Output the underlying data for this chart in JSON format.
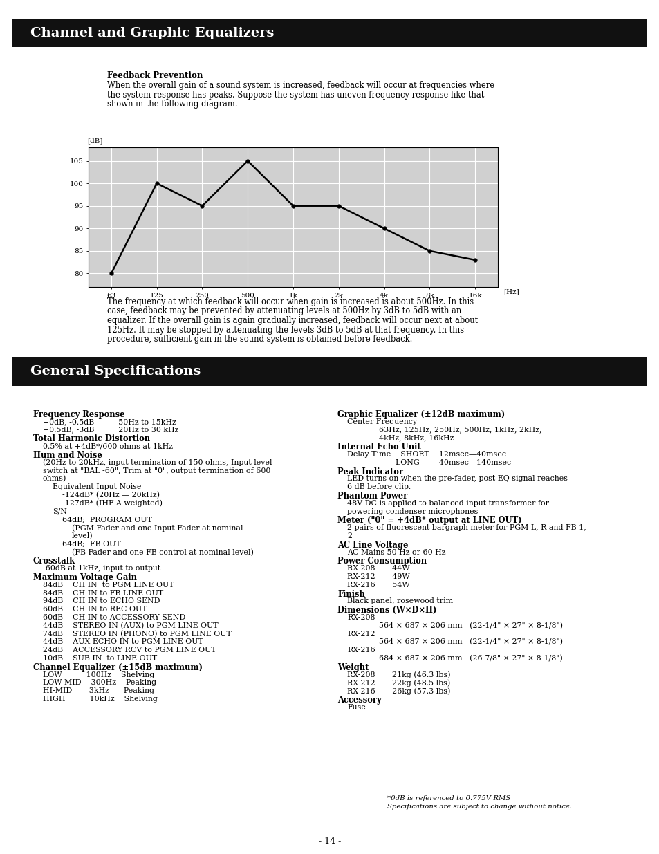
{
  "page_bg": "#ffffff",
  "header1_text": "Channel and Graphic Equalizers",
  "header1_bg": "#111111",
  "header1_color": "#ffffff",
  "header2_text": "General Specifications",
  "header2_bg": "#111111",
  "header2_color": "#ffffff",
  "feedback_title": "Feedback Prevention",
  "feedback_body_lines": [
    "When the overall gain of a sound system is increased, feedback will occur at frequencies where",
    "the system response has peaks. Suppose the system has uneven frequency response like that",
    "shown in the following diagram."
  ],
  "chart_xlabel": "[Hz]",
  "chart_ylabel": "[dB]",
  "chart_xtick_labels": [
    "63",
    "125",
    "250",
    "500",
    "1k",
    "2k",
    "4k",
    "8k",
    "16k"
  ],
  "chart_ytick_labels": [
    80,
    85,
    90,
    95,
    100,
    105
  ],
  "chart_ylim": [
    77,
    108
  ],
  "chart_data_x": [
    0,
    1,
    2,
    3,
    4,
    5,
    6,
    7,
    8
  ],
  "chart_data_y": [
    80,
    100,
    95,
    105,
    95,
    95,
    90,
    85,
    83
  ],
  "chart_bg": "#d0d0d0",
  "chart_grid_color": "#ffffff",
  "chart_line_color": "#000000",
  "feedback_body2_lines": [
    "The frequency at which feedback will occur when gain is increased is about 500Hz. In this",
    "case, feedback may be prevented by attenuating levels at 500Hz by 3dB to 5dB with an",
    "equalizer. If the overall gain is again gradually increased, feedback will occur next at about",
    "125Hz. It may be stopped by attenuating the levels 3dB to 5dB at that frequency. In this",
    "procedure, sufficient gain in the sound system is obtained before feedback."
  ],
  "left_col": [
    {
      "type": "bold",
      "text": "Frequency Response"
    },
    {
      "type": "i1",
      "text": "+0dB, -0.5dB          50Hz to 15kHz"
    },
    {
      "type": "i1",
      "text": "+0.5dB, -3dB          20Hz to 30 kHz"
    },
    {
      "type": "bold",
      "text": "Total Harmonic Distortion"
    },
    {
      "type": "i1",
      "text": "0.5% at +4dB*/600 ohms at 1kHz"
    },
    {
      "type": "bold",
      "text": "Hum and Noise"
    },
    {
      "type": "i1",
      "text": "(20Hz to 20kHz, input termination of 150 ohms, Input level"
    },
    {
      "type": "i1",
      "text": "switch at \"BAL -60\", Trim at \"0\", output termination of 600"
    },
    {
      "type": "i1",
      "text": "ohms)"
    },
    {
      "type": "i2",
      "text": "Equivalent Input Noise"
    },
    {
      "type": "i3",
      "text": "-124dB* (20Hz — 20kHz)"
    },
    {
      "type": "i3",
      "text": "-127dB* (IHF-A weighted)"
    },
    {
      "type": "i2",
      "text": "S/N"
    },
    {
      "type": "i3",
      "text": "64dB;  PROGRAM OUT"
    },
    {
      "type": "i4",
      "text": "(PGM Fader and one Input Fader at nominal"
    },
    {
      "type": "i4",
      "text": "level)"
    },
    {
      "type": "i3",
      "text": "64dB;  FB OUT"
    },
    {
      "type": "i4",
      "text": "(FB Fader and one FB control at nominal level)"
    },
    {
      "type": "bold",
      "text": "Crosstalk"
    },
    {
      "type": "i1",
      "text": "-60dB at 1kHz, input to output"
    },
    {
      "type": "bold",
      "text": "Maximum Voltage Gain"
    },
    {
      "type": "i1db",
      "text": "84dB    CH IN  to PGM LINE OUT"
    },
    {
      "type": "i1db",
      "text": "84dB    CH IN to FB LINE OUT"
    },
    {
      "type": "i1db",
      "text": "94dB    CH IN to ECHO SEND"
    },
    {
      "type": "i1db",
      "text": "60dB    CH IN to REC OUT"
    },
    {
      "type": "i1db",
      "text": "60dB    CH IN to ACCESSORY SEND"
    },
    {
      "type": "i1db",
      "text": "44dB    STEREO IN (AUX) to PGM LINE OUT"
    },
    {
      "type": "i1db",
      "text": "74dB    STEREO IN (PHONO) to PGM LINE OUT"
    },
    {
      "type": "i1db",
      "text": "44dB    AUX ECHO IN to PGM LINE OUT"
    },
    {
      "type": "i1db",
      "text": "24dB    ACCESSORY RCV to PGM LINE OUT"
    },
    {
      "type": "i1db",
      "text": "10dB    SUB IN  to LINE OUT"
    },
    {
      "type": "bold",
      "text": "Channel Equalizer (±15dB maximum)"
    },
    {
      "type": "i1",
      "text": "LOW          100Hz    Shelving"
    },
    {
      "type": "i1",
      "text": "LOW MID    300Hz    Peaking"
    },
    {
      "type": "i1",
      "text": "HI-MID       3kHz      Peaking"
    },
    {
      "type": "i1",
      "text": "HIGH          10kHz    Shelving"
    }
  ],
  "right_col": [
    {
      "type": "bold",
      "text": "Graphic Equalizer (±12dB maximum)"
    },
    {
      "type": "i1",
      "text": "Center Frequency"
    },
    {
      "type": "i2b",
      "text": "63Hz, 125Hz, 250Hz, 500Hz, 1kHz, 2kHz,"
    },
    {
      "type": "i2b",
      "text": "4kHz, 8kHz, 16kHz"
    },
    {
      "type": "bold",
      "text": "Internal Echo Unit"
    },
    {
      "type": "i1",
      "text": "Delay Time    SHORT    12msec—40msec"
    },
    {
      "type": "i1b",
      "text": "                    LONG        40msec—140msec"
    },
    {
      "type": "bold",
      "text": "Peak Indicator"
    },
    {
      "type": "i1",
      "text": "LED turns on when the pre-fader, post EQ signal reaches"
    },
    {
      "type": "i1",
      "text": "6 dB before clip."
    },
    {
      "type": "bold",
      "text": "Phantom Power"
    },
    {
      "type": "i1",
      "text": "48V DC is applied to balanced input transformer for"
    },
    {
      "type": "i1",
      "text": "powering condenser microphones"
    },
    {
      "type": "bold",
      "text": "Meter (\"0\" = +4dB* output at LINE OUT)"
    },
    {
      "type": "i1",
      "text": "2 pairs of fluorescent bargraph meter for PGM L, R and FB 1,"
    },
    {
      "type": "i1",
      "text": "2"
    },
    {
      "type": "bold",
      "text": "AC Line Voltage"
    },
    {
      "type": "i1",
      "text": "AC Mains 50 Hz or 60 Hz"
    },
    {
      "type": "bold",
      "text": "Power Consumption"
    },
    {
      "type": "i1",
      "text": "RX-208       44W"
    },
    {
      "type": "i1",
      "text": "RX-212       49W"
    },
    {
      "type": "i1",
      "text": "RX-216       54W"
    },
    {
      "type": "bold",
      "text": "Finish"
    },
    {
      "type": "i1",
      "text": "Black panel, rosewood trim"
    },
    {
      "type": "bold",
      "text": "Dimensions (W×D×H)"
    },
    {
      "type": "i1",
      "text": "RX-208"
    },
    {
      "type": "i2b",
      "text": "564 × 687 × 206 mm   (22-1/4\" × 27\" × 8-1/8\")"
    },
    {
      "type": "i1",
      "text": "RX-212"
    },
    {
      "type": "i2b",
      "text": "564 × 687 × 206 mm   (22-1/4\" × 27\" × 8-1/8\")"
    },
    {
      "type": "i1",
      "text": "RX-216"
    },
    {
      "type": "i2b",
      "text": "684 × 687 × 206 mm   (26-7/8\" × 27\" × 8-1/8\")"
    },
    {
      "type": "bold",
      "text": "Weight"
    },
    {
      "type": "i1",
      "text": "RX-208       21kg (46.3 lbs)"
    },
    {
      "type": "i1",
      "text": "RX-212       22kg (48.5 lbs)"
    },
    {
      "type": "i1",
      "text": "RX-216       26kg (57.3 lbs)"
    },
    {
      "type": "bold",
      "text": "Accessory"
    },
    {
      "type": "i1",
      "text": "Fuse"
    }
  ],
  "footnote1": "*0dB is referenced to 0.775V RMS",
  "footnote2": "Specifications are subject to change without notice.",
  "page_number": "- 14 -"
}
